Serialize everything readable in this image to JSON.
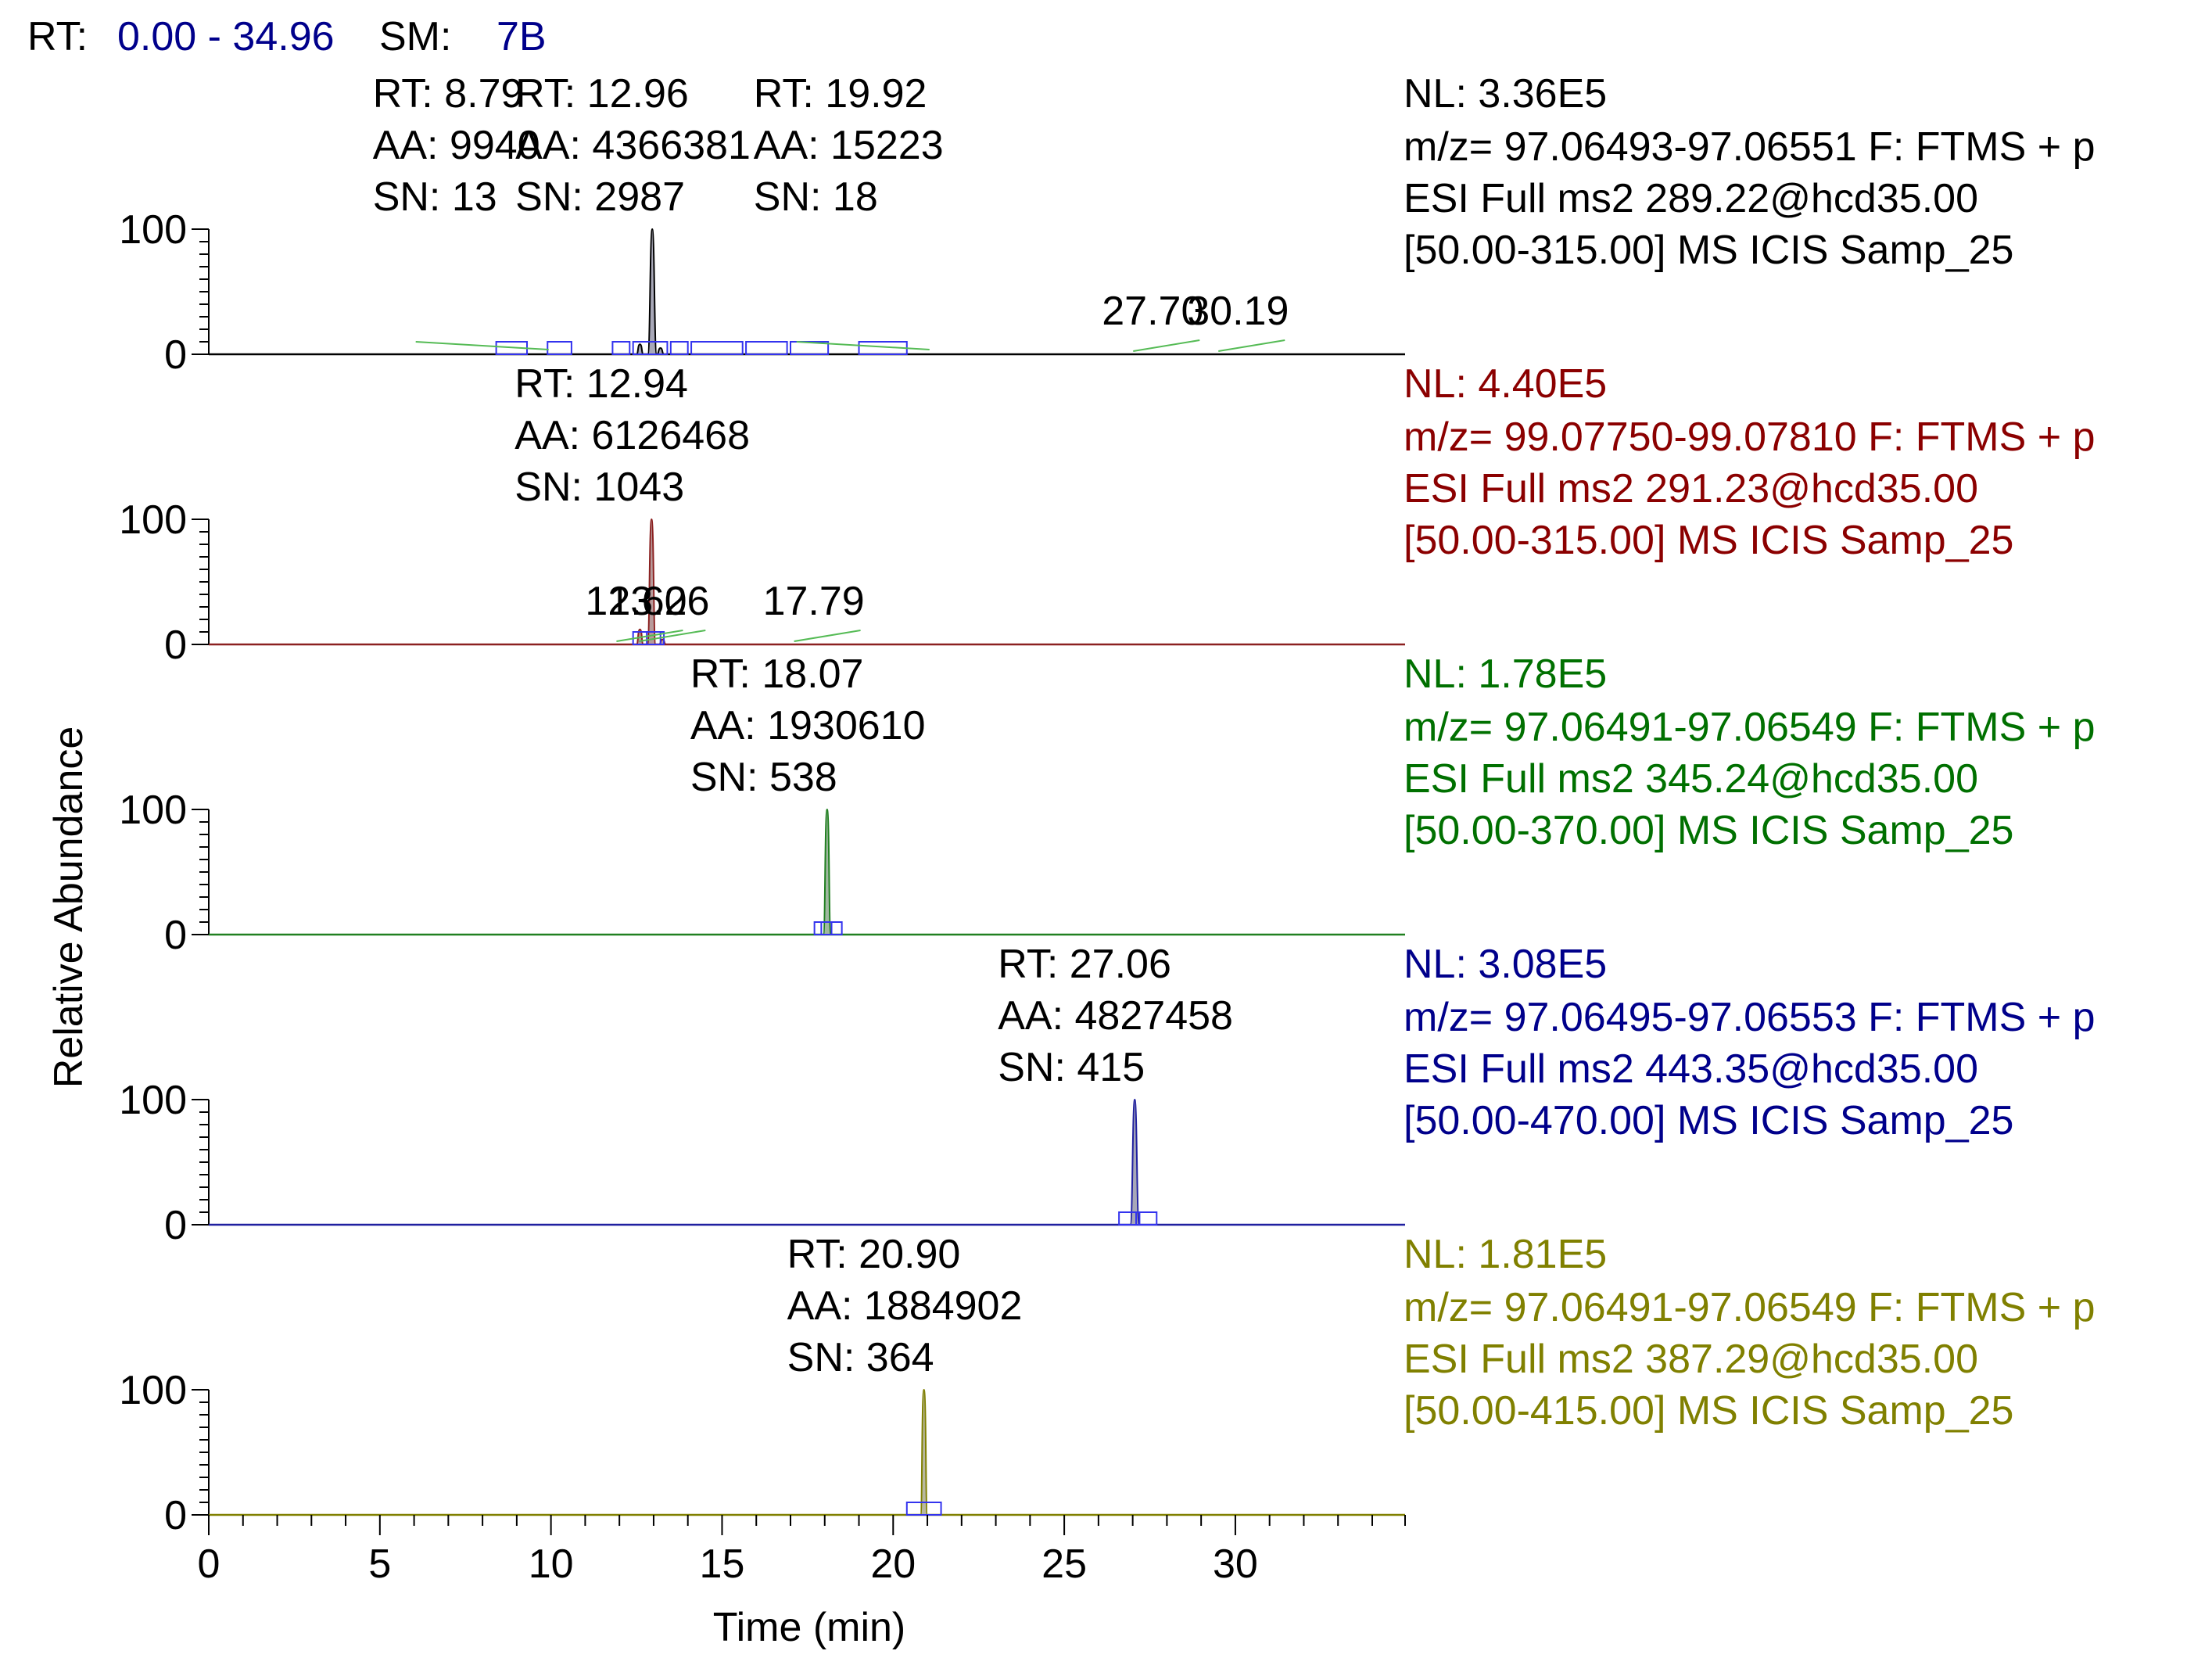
{
  "header": {
    "rt_label": "RT:",
    "rt_range": "0.00 - 34.96",
    "sm_label": "SM:",
    "sm_value": "7B"
  },
  "colors": {
    "axis": "#000000",
    "header_value": "#00008B",
    "marker_box": "#3333EE",
    "annotation_line": "#55BB55",
    "baseline_muted": "#A0A0A0"
  },
  "chart_data": {
    "type": "line",
    "title": "",
    "xlabel": "Time (min)",
    "ylabel": "Relative Abundance",
    "xlim": [
      0,
      34.96
    ],
    "x_ticks": [
      0,
      5,
      10,
      15,
      20,
      25,
      30
    ],
    "x_tick_labels": [
      "0",
      "5",
      "10",
      "15",
      "20",
      "25",
      "30"
    ],
    "ylim": [
      0,
      100
    ],
    "y_tick_labels": [
      "0",
      "100"
    ],
    "series": [
      {
        "name": "m/z 97.06493-97.06551 (289.22)",
        "color": "#000000",
        "line_color": "#000000",
        "fill": "#A8A8B8",
        "nl": "NL: 3.36E5",
        "info": [
          "m/z= 97.06493-97.06551 F: FTMS + p",
          "ESI Full ms2 289.22@hcd35.00",
          "[50.00-315.00]  MS  ICIS Samp_25"
        ],
        "peaks": [
          {
            "rt": 12.96,
            "height": 100,
            "width": 0.13
          },
          {
            "rt": 12.6,
            "height": 8,
            "width": 0.1
          },
          {
            "rt": 13.2,
            "height": 5,
            "width": 0.1
          }
        ],
        "boxes": [
          [
            8.4,
            9.3
          ],
          [
            9.9,
            10.6
          ],
          [
            11.8,
            12.3
          ],
          [
            12.4,
            13.4
          ],
          [
            13.5,
            14.0
          ],
          [
            14.1,
            15.6
          ],
          [
            15.7,
            16.9
          ],
          [
            17.0,
            18.1
          ],
          [
            19.0,
            20.4
          ]
        ],
        "labels": [
          {
            "lines": [
              "RT: 12.96",
              "AA: 4366381",
              "SN: 2987"
            ],
            "x": 12.96
          },
          {
            "lines": [
              "RT: 8.79",
              "AA: 9940",
              "SN: 13"
            ],
            "x": 8.79
          },
          {
            "lines": [
              "RT: 19.92",
              "AA: 15223",
              "SN: 18"
            ],
            "x": 19.92
          }
        ],
        "minor_labels": [
          {
            "text": "27.70",
            "x": 27.7
          },
          {
            "text": "30.19",
            "x": 30.19
          }
        ]
      },
      {
        "name": "m/z 99.07750-99.07810 (291.23)",
        "color": "#8B0000",
        "line_color": "#8B2020",
        "fill": "#B89A9A",
        "nl": "NL: 4.40E5",
        "info": [
          "m/z= 99.07750-99.07810 F: FTMS + p",
          "ESI Full ms2 291.23@hcd35.00",
          "[50.00-315.00]  MS  ICIS Samp_25"
        ],
        "peaks": [
          {
            "rt": 12.94,
            "height": 100,
            "width": 0.12
          },
          {
            "rt": 12.6,
            "height": 12,
            "width": 0.1
          },
          {
            "rt": 13.26,
            "height": 4,
            "width": 0.1
          }
        ],
        "boxes": [
          [
            12.4,
            13.2
          ],
          [
            12.8,
            13.3
          ]
        ],
        "labels": [
          {
            "lines": [
              "RT: 12.94",
              "AA: 6126468",
              "SN: 1043"
            ],
            "x": 12.94
          }
        ],
        "minor_labels": [
          {
            "text": "12.60",
            "x": 12.6
          },
          {
            "text": "13.26",
            "x": 13.26
          },
          {
            "text": "17.79",
            "x": 17.79
          }
        ]
      },
      {
        "name": "m/z 97.06491-97.06549 (345.24)",
        "color": "#007000",
        "line_color": "#208020",
        "fill": "#A0B8A0",
        "nl": "NL: 1.78E5",
        "info": [
          "m/z= 97.06491-97.06549 F: FTMS + p",
          "ESI Full ms2 345.24@hcd35.00",
          "[50.00-370.00]  MS  ICIS Samp_25"
        ],
        "peaks": [
          {
            "rt": 18.07,
            "height": 100,
            "width": 0.11
          }
        ],
        "boxes": [
          [
            17.7,
            18.5
          ],
          [
            17.9,
            18.2
          ]
        ],
        "labels": [
          {
            "lines": [
              "RT: 18.07",
              "AA: 1930610",
              "SN: 538"
            ],
            "x": 18.07
          }
        ],
        "minor_labels": []
      },
      {
        "name": "m/z 97.06495-97.06553 (443.35)",
        "color": "#00008B",
        "line_color": "#2020A0",
        "fill": "#A8A8B8",
        "nl": "NL: 3.08E5",
        "info": [
          "m/z= 97.06495-97.06553 F: FTMS + p",
          "ESI Full ms2 443.35@hcd35.00",
          "[50.00-470.00]  MS  ICIS Samp_25"
        ],
        "peaks": [
          {
            "rt": 27.06,
            "height": 100,
            "width": 0.13
          }
        ],
        "boxes": [
          [
            26.6,
            27.2
          ],
          [
            27.1,
            27.7
          ]
        ],
        "labels": [
          {
            "lines": [
              "RT: 27.06",
              "AA: 4827458",
              "SN: 415"
            ],
            "x": 27.06
          }
        ],
        "minor_labels": []
      },
      {
        "name": "m/z 97.06491-97.06549 (387.29)",
        "color": "#808000",
        "line_color": "#808000",
        "fill": "#B8B8A0",
        "nl": "NL: 1.81E5",
        "info": [
          "m/z= 97.06491-97.06549 F: FTMS + p",
          "ESI Full ms2 387.29@hcd35.00",
          "[50.00-415.00]  MS  ICIS Samp_25"
        ],
        "peaks": [
          {
            "rt": 20.9,
            "height": 100,
            "width": 0.1
          }
        ],
        "boxes": [
          [
            20.4,
            21.4
          ]
        ],
        "labels": [
          {
            "lines": [
              "RT: 20.90",
              "AA: 1884902",
              "SN: 364"
            ],
            "x": 20.9
          }
        ],
        "minor_labels": []
      }
    ]
  }
}
